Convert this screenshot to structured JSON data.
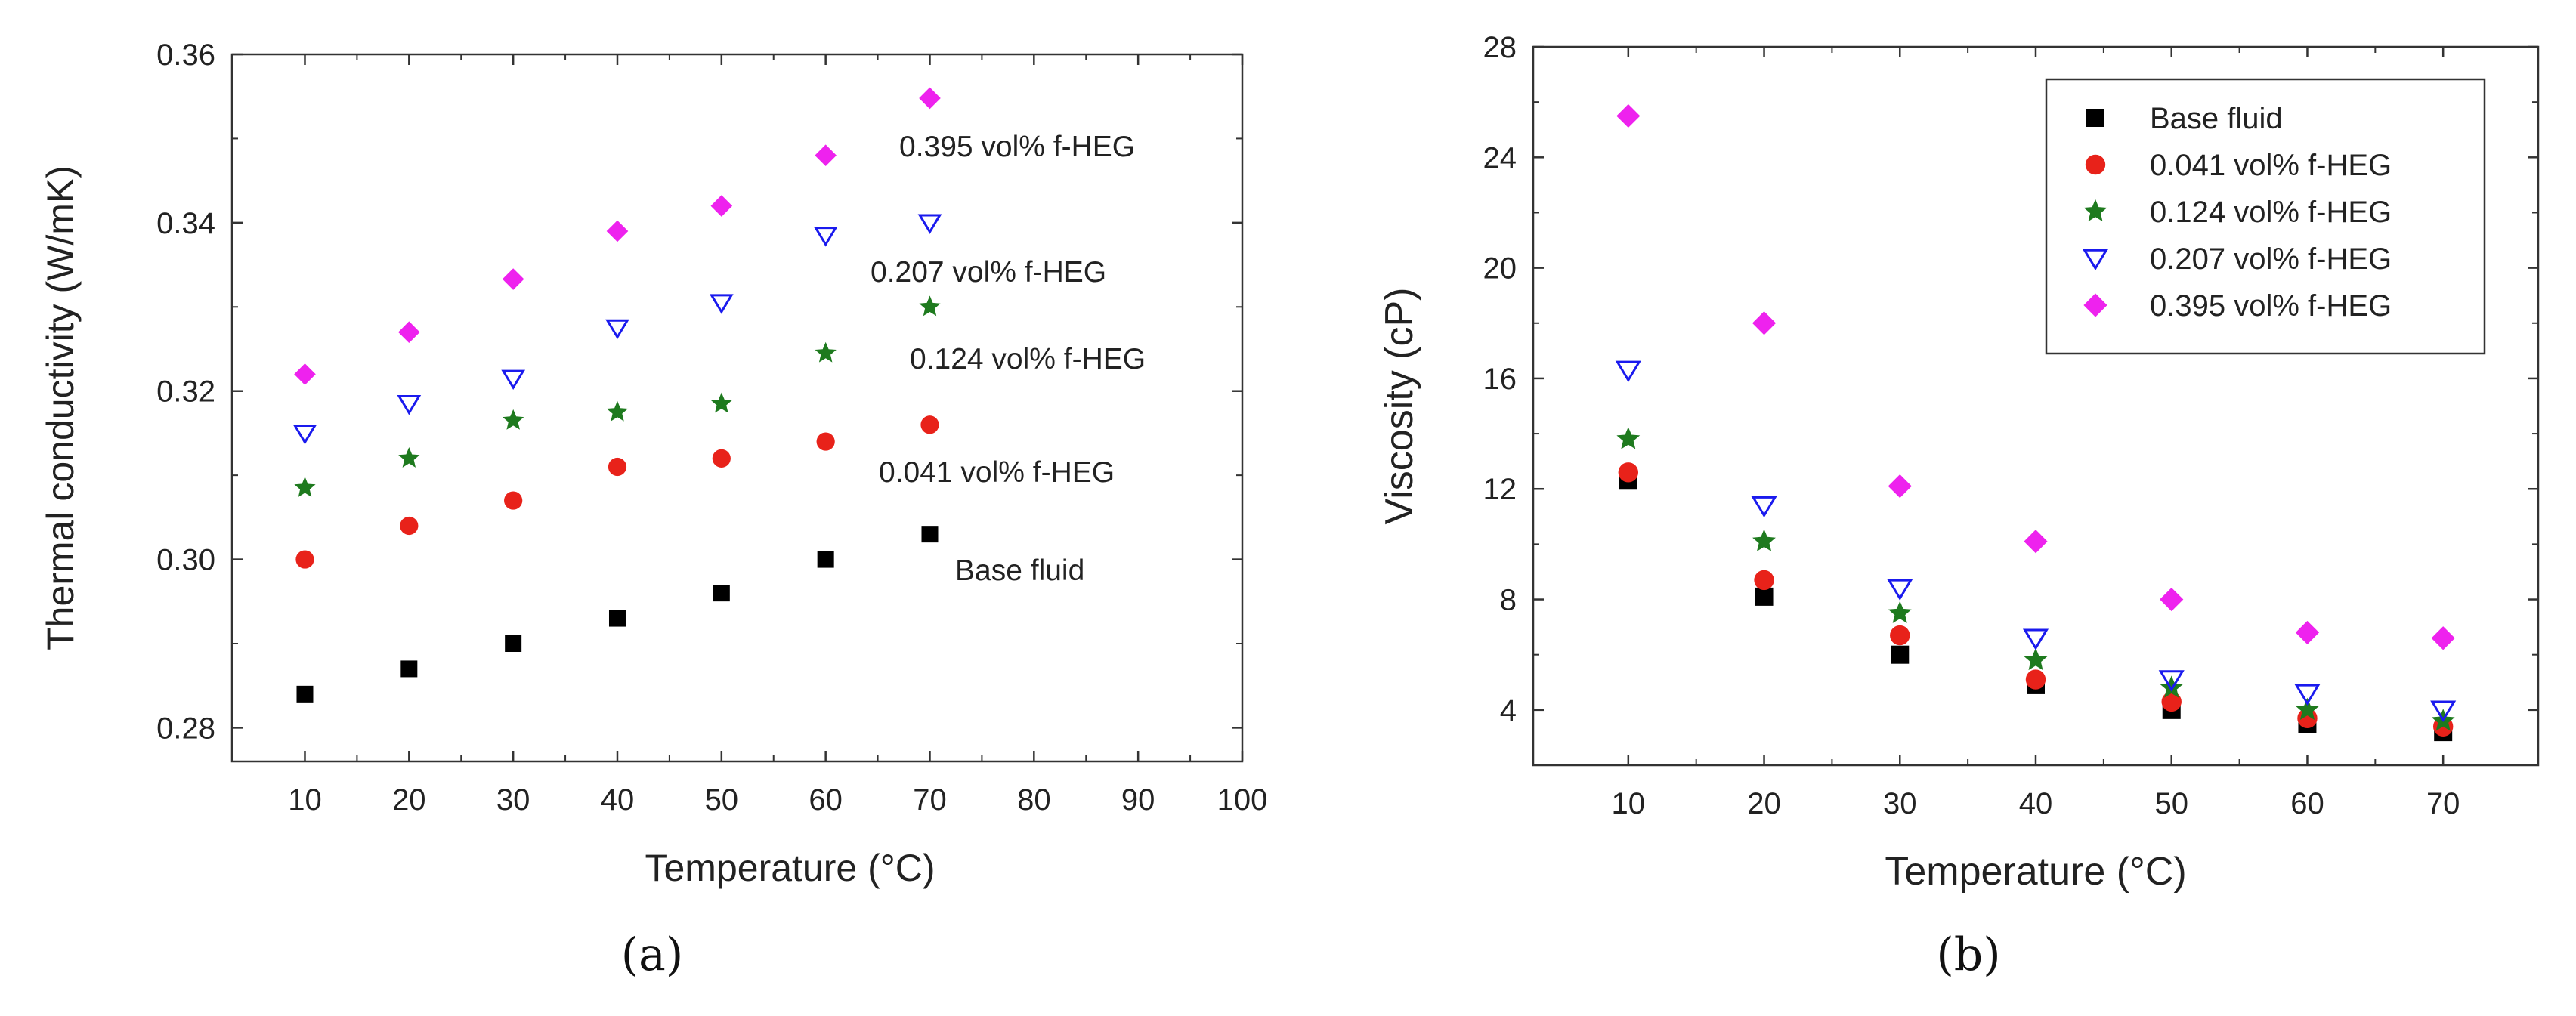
{
  "chart_data": [
    {
      "panel_label": "(a)",
      "type": "scatter",
      "title": "",
      "xlabel": "Temperature (°C)",
      "ylabel": "Thermal conductivity (W/mK)",
      "xlim": [
        3,
        100
      ],
      "ylim": [
        0.276,
        0.36
      ],
      "xticks": [
        10,
        20,
        30,
        40,
        50,
        60,
        70,
        80,
        90,
        100
      ],
      "yticks": [
        0.28,
        0.3,
        0.32,
        0.34,
        0.36
      ],
      "ytick_labels": [
        "0.28",
        "0.30",
        "0.32",
        "0.34",
        "0.36"
      ],
      "legend": "inline labels at right of each series",
      "series": [
        {
          "name": "Base fluid",
          "marker": "square",
          "color": "#000000",
          "x": [
            10,
            20,
            30,
            40,
            50,
            60,
            70
          ],
          "y": [
            0.284,
            0.287,
            0.29,
            0.293,
            0.296,
            0.3,
            0.303
          ]
        },
        {
          "name": "0.041 vol% f-HEG",
          "marker": "circle",
          "color": "#e8221a",
          "x": [
            10,
            20,
            30,
            40,
            50,
            60,
            70
          ],
          "y": [
            0.3,
            0.304,
            0.307,
            0.311,
            0.312,
            0.314,
            0.316
          ]
        },
        {
          "name": "0.124 vol% f-HEG",
          "marker": "star",
          "color": "#1e7a1e",
          "x": [
            10,
            20,
            30,
            40,
            50,
            60,
            70
          ],
          "y": [
            0.3085,
            0.312,
            0.3165,
            0.3175,
            0.3185,
            0.3245,
            0.33
          ]
        },
        {
          "name": "0.207 vol% f-HEG",
          "marker": "triangle-down-open",
          "color": "#1a1aee",
          "x": [
            10,
            20,
            30,
            40,
            50,
            60,
            70
          ],
          "y": [
            0.315,
            0.3185,
            0.3215,
            0.3275,
            0.3305,
            0.3385,
            0.34
          ]
        },
        {
          "name": "0.395 vol% f-HEG",
          "marker": "diamond",
          "color": "#ee22ee",
          "x": [
            10,
            20,
            30,
            40,
            50,
            60,
            70
          ],
          "y": [
            0.322,
            0.327,
            0.3333,
            0.339,
            0.342,
            0.348,
            0.3548
          ]
        }
      ]
    },
    {
      "panel_label": "(b)",
      "type": "scatter",
      "title": "",
      "xlabel": "Temperature (°C)",
      "ylabel": "Viscosity (cP)",
      "xlim": [
        3,
        77
      ],
      "ylim": [
        2,
        28
      ],
      "xticks": [
        10,
        20,
        30,
        40,
        50,
        60,
        70
      ],
      "yticks": [
        4,
        8,
        12,
        16,
        20,
        24,
        28
      ],
      "ytick_labels": [
        "4",
        "8",
        "12",
        "16",
        "20",
        "24",
        "28"
      ],
      "legend": "top-right",
      "series": [
        {
          "name": "Base fluid",
          "marker": "square",
          "color": "#000000",
          "x": [
            10,
            20,
            30,
            40,
            50,
            60,
            70
          ],
          "y": [
            12.3,
            8.1,
            6.0,
            4.9,
            4.0,
            3.5,
            3.2
          ]
        },
        {
          "name": "0.041 vol% f-HEG",
          "marker": "circle",
          "color": "#e8221a",
          "x": [
            10,
            20,
            30,
            40,
            50,
            60,
            70
          ],
          "y": [
            12.6,
            8.7,
            6.7,
            5.1,
            4.3,
            3.7,
            3.4
          ]
        },
        {
          "name": "0.124 vol% f-HEG",
          "marker": "star",
          "color": "#1e7a1e",
          "x": [
            10,
            20,
            30,
            40,
            50,
            60,
            70
          ],
          "y": [
            13.8,
            10.1,
            7.5,
            5.8,
            4.8,
            4.0,
            3.6
          ]
        },
        {
          "name": "0.207 vol% f-HEG",
          "marker": "triangle-down-open",
          "color": "#1a1aee",
          "x": [
            10,
            20,
            30,
            40,
            50,
            60,
            70
          ],
          "y": [
            16.3,
            11.4,
            8.4,
            6.6,
            5.1,
            4.6,
            4.0
          ]
        },
        {
          "name": "0.395 vol% f-HEG",
          "marker": "diamond",
          "color": "#ee22ee",
          "x": [
            10,
            20,
            30,
            40,
            50,
            60,
            70
          ],
          "y": [
            25.5,
            18.0,
            12.1,
            10.1,
            8.0,
            6.8,
            6.6
          ]
        }
      ]
    }
  ]
}
